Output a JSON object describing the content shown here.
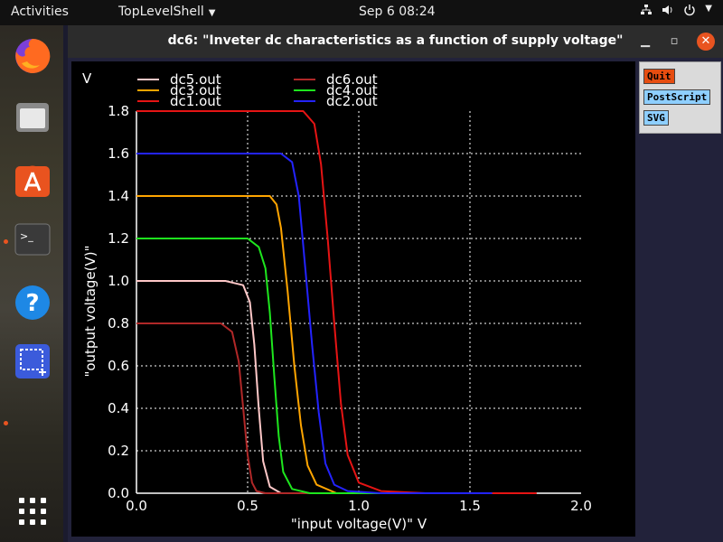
{
  "topbar": {
    "activities": "Activities",
    "app_name": "TopLevelShell",
    "clock": "Sep 6  08:24",
    "icons": [
      "network-icon",
      "volume-icon",
      "power-icon",
      "chevron-down-icon"
    ]
  },
  "dock": {
    "items": [
      "firefox-icon",
      "files-icon",
      "software-store-icon",
      "terminal-icon",
      "help-icon",
      "screenshot-icon",
      "app-grid-icon"
    ]
  },
  "window": {
    "title": "dc6: \"Inveter dc characteristics as a function of supply voltage\"",
    "buttons": {
      "quit": "Quit",
      "postscript": "PostScript",
      "svg": "SVG"
    }
  },
  "chart_data": {
    "type": "line",
    "xlabel": "\"input voltage(V)\"  V",
    "ylabel": "\"output voltage(V)\"",
    "y_unit": "V",
    "xlim": [
      0,
      2.0
    ],
    "ylim": [
      0,
      1.8
    ],
    "xticks": [
      "0.0",
      "0.5",
      "1.0",
      "1.5",
      "2.0"
    ],
    "yticks": [
      "0.0",
      "0.2",
      "0.4",
      "0.6",
      "0.8",
      "1.0",
      "1.2",
      "1.4",
      "1.6",
      "1.8"
    ],
    "grid": true,
    "legend_placement": "top",
    "series": [
      {
        "name": "dc5.out",
        "color": "#ffc8c8",
        "x": [
          0,
          0.4,
          0.48,
          0.51,
          0.53,
          0.55,
          0.57,
          0.6,
          0.65,
          1.0
        ],
        "y": [
          1.0,
          1.0,
          0.98,
          0.9,
          0.7,
          0.4,
          0.15,
          0.03,
          0.0,
          0.0
        ]
      },
      {
        "name": "dc6.out",
        "color": "#b02828",
        "x": [
          0,
          0.38,
          0.43,
          0.46,
          0.48,
          0.5,
          0.52,
          0.54,
          0.58,
          0.8
        ],
        "y": [
          0.8,
          0.8,
          0.76,
          0.62,
          0.4,
          0.18,
          0.05,
          0.01,
          0.0,
          0.0
        ]
      },
      {
        "name": "dc3.out",
        "color": "#ffa500",
        "x": [
          0,
          0.6,
          0.63,
          0.65,
          0.68,
          0.71,
          0.74,
          0.77,
          0.81,
          0.9,
          1.4
        ],
        "y": [
          1.4,
          1.4,
          1.36,
          1.25,
          0.95,
          0.6,
          0.32,
          0.13,
          0.04,
          0.0,
          0.0
        ]
      },
      {
        "name": "dc4.out",
        "color": "#1ee61e",
        "x": [
          0,
          0.5,
          0.55,
          0.58,
          0.6,
          0.62,
          0.64,
          0.66,
          0.7,
          0.78,
          1.2
        ],
        "y": [
          1.2,
          1.2,
          1.16,
          1.06,
          0.85,
          0.55,
          0.27,
          0.1,
          0.02,
          0.0,
          0.0
        ]
      },
      {
        "name": "dc1.out",
        "color": "#e61414",
        "x": [
          0,
          0.75,
          0.8,
          0.83,
          0.86,
          0.89,
          0.92,
          0.95,
          1.0,
          1.1,
          1.3,
          1.8
        ],
        "y": [
          1.8,
          1.8,
          1.74,
          1.55,
          1.2,
          0.8,
          0.42,
          0.18,
          0.05,
          0.01,
          0.0,
          0.0
        ]
      },
      {
        "name": "dc2.out",
        "color": "#2323ff",
        "x": [
          0,
          0.65,
          0.7,
          0.73,
          0.76,
          0.79,
          0.82,
          0.85,
          0.89,
          0.95,
          1.1,
          1.6
        ],
        "y": [
          1.6,
          1.6,
          1.56,
          1.4,
          1.05,
          0.7,
          0.38,
          0.14,
          0.04,
          0.01,
          0.0,
          0.0
        ]
      }
    ]
  }
}
